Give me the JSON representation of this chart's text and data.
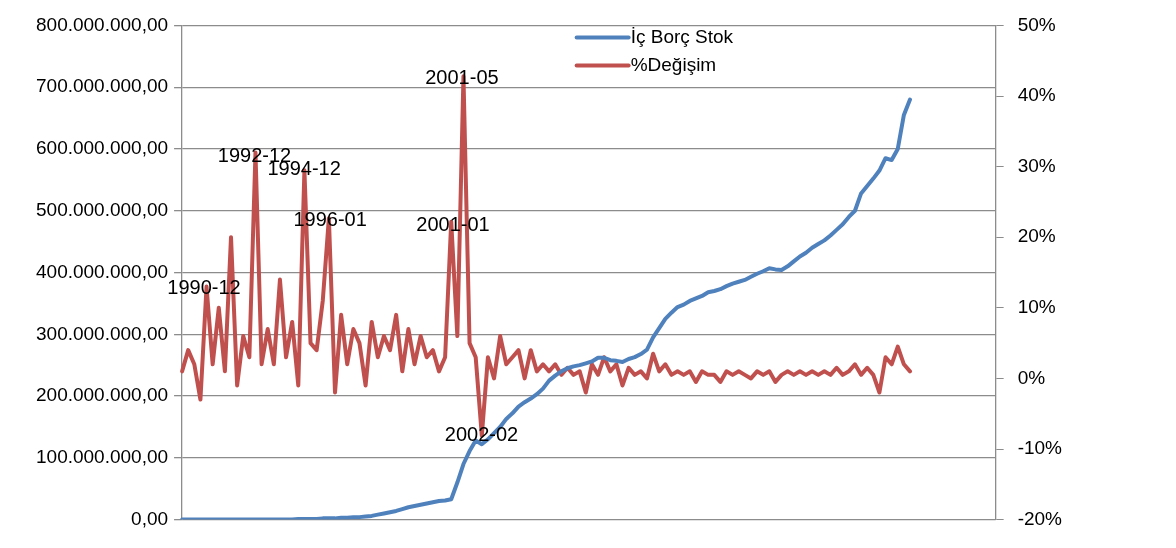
{
  "chart_data": {
    "type": "line",
    "categories": [
      null,
      null,
      null,
      null,
      null,
      null,
      null,
      null,
      null,
      null,
      null,
      null,
      null,
      null,
      null,
      null,
      null,
      null,
      null,
      null,
      null,
      null,
      null,
      null,
      null,
      null,
      null,
      null,
      null,
      null,
      null,
      null,
      null,
      null,
      null,
      null,
      null,
      null,
      null,
      null,
      null,
      null,
      null,
      null,
      null,
      null,
      null,
      null,
      null,
      null,
      null,
      null,
      null,
      null,
      null,
      null,
      null,
      null,
      null,
      null,
      null,
      null,
      null,
      null,
      null,
      null,
      null,
      null,
      null,
      null,
      null,
      null,
      null,
      null,
      null,
      null,
      null,
      null,
      null,
      null,
      null,
      null,
      null,
      null,
      null,
      null,
      null,
      null,
      null,
      null,
      null,
      null,
      null,
      null,
      null,
      null,
      null,
      null,
      null,
      null,
      null,
      null,
      null,
      null,
      null,
      null,
      null,
      null,
      null,
      null,
      null,
      null,
      null,
      null,
      null,
      null,
      null,
      null,
      null,
      null,
      null,
      null,
      null,
      null,
      null,
      null,
      null,
      null,
      null,
      null,
      null,
      null,
      null,
      null
    ],
    "series": [
      {
        "name": "İç Borç Stok",
        "color": "#4f81bd",
        "values": [
          0,
          0,
          0,
          0,
          0,
          0,
          0,
          0,
          0,
          0,
          0,
          0,
          0,
          0,
          0,
          0,
          0,
          0,
          0,
          1000000,
          1000000,
          1000000,
          1000000,
          2000000,
          2000000,
          2000000,
          3000000,
          3000000,
          4000000,
          4000000,
          5000000,
          6000000,
          8000000,
          10000000,
          12000000,
          14000000,
          17000000,
          20000000,
          22000000,
          24000000,
          26000000,
          28000000,
          30000000,
          31000000,
          33000000,
          60000000,
          90000000,
          111000000,
          128000000,
          122000000,
          130000000,
          140000000,
          150000000,
          163000000,
          172000000,
          183000000,
          190000000,
          196000000,
          203000000,
          212000000,
          225000000,
          233000000,
          240000000,
          245000000,
          248000000,
          250000000,
          253000000,
          256000000,
          262000000,
          262000000,
          258000000,
          257000000,
          255000000,
          260000000,
          263000000,
          268000000,
          275000000,
          295000000,
          310000000,
          325000000,
          335000000,
          344000000,
          348000000,
          354000000,
          358000000,
          362000000,
          368000000,
          370000000,
          373000000,
          378000000,
          382000000,
          385000000,
          388000000,
          393000000,
          398000000,
          402000000,
          407000000,
          405000000,
          404000000,
          410000000,
          418000000,
          426000000,
          432000000,
          440000000,
          446000000,
          452000000,
          460000000,
          469000000,
          478000000,
          490000000,
          500000000,
          528000000,
          540000000,
          552000000,
          565000000,
          585000000,
          582000000,
          600000000,
          655000000,
          680000000,
          null,
          null,
          null,
          null,
          null,
          null,
          null,
          null,
          null,
          null,
          null,
          null,
          null,
          null
        ]
      },
      {
        "name": "%Değişim",
        "color": "#c0504d",
        "axis": "y2",
        "values": [
          1,
          4,
          2,
          -3,
          13,
          2,
          10,
          1,
          20,
          -1,
          6,
          3,
          32,
          2,
          7,
          2,
          14,
          3,
          8,
          -1,
          29.5,
          5,
          4,
          11,
          22.7,
          -2,
          9,
          2,
          7,
          5,
          -1,
          8,
          3,
          6,
          4,
          9,
          1,
          7,
          2,
          6,
          3,
          4,
          1,
          3,
          22.2,
          6,
          42.8,
          5,
          3,
          -8.1,
          3,
          0,
          6,
          2,
          3,
          4,
          0,
          4,
          1,
          2,
          1,
          2,
          0.5,
          1.5,
          0.5,
          1,
          -2,
          2,
          0.5,
          3,
          1,
          2,
          -1,
          1.5,
          0.5,
          1,
          0,
          3.5,
          1,
          2,
          0.5,
          1,
          0.5,
          1,
          -0.5,
          1,
          0.5,
          0.5,
          -0.5,
          1,
          0.5,
          1,
          0.5,
          0,
          1,
          0.5,
          1,
          -0.5,
          0.5,
          1,
          0.5,
          1,
          0.5,
          1,
          0.5,
          1,
          0.5,
          1.5,
          0.5,
          1,
          2,
          0.5,
          1.5,
          0.5,
          -2,
          3,
          2,
          4.5,
          2,
          1,
          null,
          null,
          null,
          null,
          null,
          null,
          null,
          null,
          null,
          null,
          null,
          null,
          null,
          null
        ]
      }
    ],
    "ylim": [
      0,
      800000000
    ],
    "yticks": [
      {
        "value": 0,
        "label": "0,00"
      },
      {
        "value": 100000000,
        "label": "100.000.000,00"
      },
      {
        "value": 200000000,
        "label": "200.000.000,00"
      },
      {
        "value": 300000000,
        "label": "300.000.000,00"
      },
      {
        "value": 400000000,
        "label": "400.000.000,00"
      },
      {
        "value": 500000000,
        "label": "500.000.000,00"
      },
      {
        "value": 600000000,
        "label": "600.000.000,00"
      },
      {
        "value": 700000000,
        "label": "700.000.000,00"
      },
      {
        "value": 800000000,
        "label": "800.000.000,00"
      }
    ],
    "y2lim": [
      -20,
      50
    ],
    "y2ticks": [
      {
        "value": -20,
        "label": "-20%"
      },
      {
        "value": -10,
        "label": "-10%"
      },
      {
        "value": 0,
        "label": "0%"
      },
      {
        "value": 10,
        "label": "10%"
      },
      {
        "value": 20,
        "label": "20%"
      },
      {
        "value": 30,
        "label": "30%"
      },
      {
        "value": 40,
        "label": "40%"
      },
      {
        "value": 50,
        "label": "50%"
      }
    ],
    "annotations": [
      "1990-12",
      "1992-12",
      "1994-12",
      "1996-01",
      "2001-01",
      "2001-05",
      "2002-02"
    ],
    "grid": "y",
    "legend": "top",
    "marker": "none",
    "line_style": "solid"
  }
}
